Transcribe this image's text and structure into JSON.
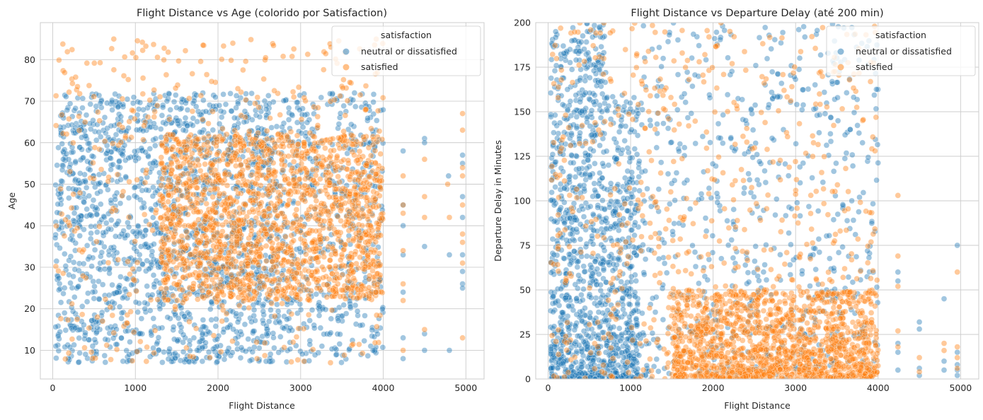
{
  "colors": {
    "neutral_or_dissatisfied": "#1f77b4",
    "satisfied": "#ff7f0e",
    "grid": "#cccccc",
    "background": "#ffffff"
  },
  "chart_data": [
    {
      "type": "scatter",
      "title": "Flight Distance vs Age (colorido por Satisfaction)",
      "xlabel": "Flight Distance",
      "ylabel": "Age",
      "xlim": [
        -150,
        5220
      ],
      "ylim": [
        3.1,
        88.9
      ],
      "xticks": [
        0,
        1000,
        2000,
        3000,
        4000,
        5000
      ],
      "yticks": [
        10,
        20,
        30,
        40,
        50,
        60,
        70,
        80
      ],
      "grid": true,
      "legend": {
        "title": "satisfaction",
        "placement": "top-right",
        "entries": [
          "neutral or dissatisfied",
          "satisfied"
        ]
      },
      "series": [
        {
          "name": "neutral or dissatisfied",
          "color": "#1f77b4",
          "dense_region": {
            "x": [
              30,
              2700
            ],
            "y": [
              7,
              72
            ]
          },
          "sparse_region": {
            "x": [
              2700,
              4000
            ],
            "y": [
              7,
              72
            ]
          },
          "outliers": [
            [
              4240,
              58
            ],
            [
              4240,
              45
            ],
            [
              4240,
              40
            ],
            [
              4240,
              33
            ],
            [
              4240,
              24
            ],
            [
              4240,
              13
            ],
            [
              4240,
              8
            ],
            [
              4500,
              61
            ],
            [
              4500,
              60
            ],
            [
              4500,
              35
            ],
            [
              4500,
              14
            ],
            [
              4500,
              10
            ],
            [
              4790,
              52
            ],
            [
              4800,
              33
            ],
            [
              4800,
              10
            ],
            [
              4960,
              57
            ],
            [
              4960,
              55
            ],
            [
              4960,
              47
            ],
            [
              4960,
              42
            ],
            [
              4960,
              33
            ],
            [
              4960,
              29
            ],
            [
              4960,
              26
            ],
            [
              4960,
              25
            ]
          ]
        },
        {
          "name": "satisfied",
          "color": "#ff7f0e",
          "dense_region": {
            "x": [
              1300,
              4000
            ],
            "y": [
              22,
              62
            ]
          },
          "sparse_region": {
            "x": [
              30,
              4000
            ],
            "y": [
              7,
              85
            ]
          },
          "outliers": [
            [
              4240,
              52
            ],
            [
              4240,
              45
            ],
            [
              4240,
              43
            ],
            [
              4240,
              34
            ],
            [
              4240,
              26
            ],
            [
              4240,
              22
            ],
            [
              4240,
              10
            ],
            [
              4500,
              56
            ],
            [
              4500,
              47
            ],
            [
              4500,
              42
            ],
            [
              4500,
              15
            ],
            [
              4780,
              50
            ],
            [
              4800,
              42
            ],
            [
              4960,
              67
            ],
            [
              4960,
              63
            ],
            [
              4960,
              54
            ],
            [
              4960,
              52
            ],
            [
              4960,
              45
            ],
            [
              4960,
              38
            ],
            [
              4960,
              36
            ],
            [
              4960,
              31
            ],
            [
              4960,
              13
            ]
          ]
        }
      ]
    },
    {
      "type": "scatter",
      "title": "Flight Distance vs Departure Delay (até 200 min)",
      "xlabel": "Flight Distance",
      "ylabel": "Departure Delay in Minutes",
      "xlim": [
        -150,
        5220
      ],
      "ylim": [
        0,
        200
      ],
      "xticks": [
        0,
        1000,
        2000,
        3000,
        4000,
        5000
      ],
      "yticks": [
        0,
        25,
        50,
        75,
        100,
        125,
        150,
        175,
        200
      ],
      "grid": true,
      "legend": {
        "title": "satisfaction",
        "placement": "top-right",
        "entries": [
          "neutral or dissatisfied",
          "satisfied"
        ]
      },
      "series": [
        {
          "name": "neutral or dissatisfied",
          "color": "#1f77b4",
          "dense_region": {
            "x": [
              30,
              1100
            ],
            "y": [
              0,
              200
            ]
          },
          "sparse_region": {
            "x": [
              1100,
              4000
            ],
            "y": [
              0,
              200
            ]
          },
          "outliers": [
            [
              4240,
              60
            ],
            [
              4240,
              55
            ],
            [
              4240,
              20
            ],
            [
              4240,
              15
            ],
            [
              4240,
              5
            ],
            [
              4500,
              32
            ],
            [
              4500,
              28
            ],
            [
              4500,
              6
            ],
            [
              4500,
              2
            ],
            [
              4800,
              45
            ],
            [
              4800,
              10
            ],
            [
              4800,
              5
            ],
            [
              4960,
              75
            ],
            [
              4960,
              15
            ],
            [
              4960,
              8
            ],
            [
              4960,
              5
            ],
            [
              4960,
              2
            ]
          ]
        },
        {
          "name": "satisfied",
          "color": "#ff7f0e",
          "dense_region": {
            "x": [
              1500,
              4000
            ],
            "y": [
              0,
              50
            ]
          },
          "sparse_region": {
            "x": [
              30,
              4000
            ],
            "y": [
              0,
              200
            ]
          },
          "outliers": [
            [
              4240,
              103
            ],
            [
              4240,
              69
            ],
            [
              4240,
              52
            ],
            [
              4240,
              27
            ],
            [
              4240,
              18
            ],
            [
              4500,
              12
            ],
            [
              4500,
              4
            ],
            [
              4800,
              20
            ],
            [
              4800,
              16
            ],
            [
              4960,
              60
            ],
            [
              4960,
              18
            ],
            [
              4960,
              12
            ],
            [
              4960,
              6
            ]
          ]
        }
      ]
    }
  ]
}
